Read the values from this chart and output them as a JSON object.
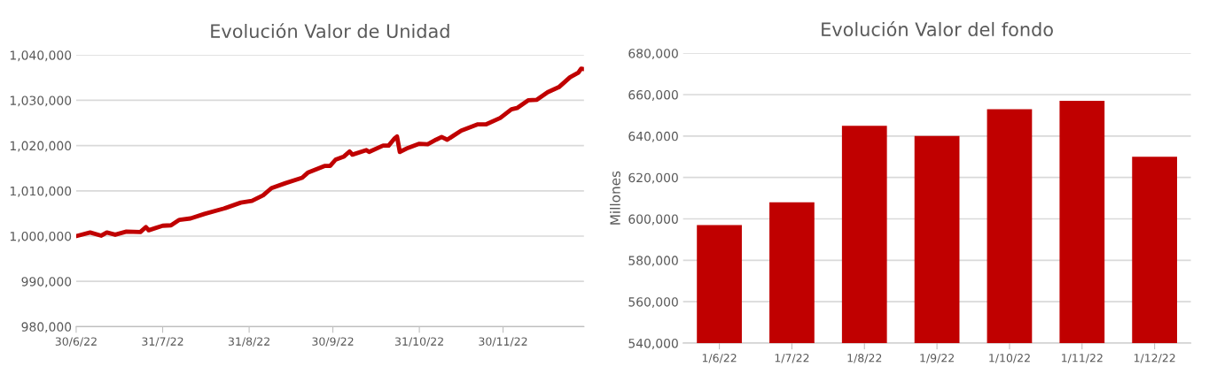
{
  "chart_data": [
    {
      "type": "line",
      "title": "Evolución Valor de Unidad",
      "color": "#c00000",
      "grid": "y",
      "legend": false,
      "x": [
        "2022-06-30",
        "2022-07-05",
        "2022-07-09",
        "2022-07-11",
        "2022-07-14",
        "2022-07-18",
        "2022-07-23",
        "2022-07-25",
        "2022-07-26",
        "2022-07-31",
        "2022-08-03",
        "2022-08-06",
        "2022-08-10",
        "2022-08-15",
        "2022-08-22",
        "2022-08-28",
        "2022-09-01",
        "2022-09-05",
        "2022-09-08",
        "2022-09-13",
        "2022-09-19",
        "2022-09-21",
        "2022-09-27",
        "2022-09-29",
        "2022-10-01",
        "2022-10-04",
        "2022-10-06",
        "2022-10-07",
        "2022-10-12",
        "2022-10-13",
        "2022-10-18",
        "2022-10-20",
        "2022-10-22",
        "2022-10-23",
        "2022-10-24",
        "2022-10-27",
        "2022-10-31",
        "2022-11-03",
        "2022-11-06",
        "2022-11-08",
        "2022-11-10",
        "2022-11-15",
        "2022-11-21",
        "2022-11-24",
        "2022-11-29",
        "2022-12-03",
        "2022-12-05",
        "2022-12-09",
        "2022-12-12",
        "2022-12-16",
        "2022-12-20",
        "2022-12-24",
        "2022-12-27",
        "2022-12-28",
        "2022-12-29"
      ],
      "values": [
        1000000,
        1000800,
        1000100,
        1000800,
        1000300,
        1001000,
        1000900,
        1002000,
        1001300,
        1002300,
        1002400,
        1003600,
        1003900,
        1004900,
        1006100,
        1007400,
        1007800,
        1009000,
        1010600,
        1011700,
        1012900,
        1014000,
        1015500,
        1015500,
        1016900,
        1017600,
        1018700,
        1018000,
        1019000,
        1018600,
        1020000,
        1020000,
        1021500,
        1022000,
        1018600,
        1019500,
        1020400,
        1020300,
        1021300,
        1021900,
        1021300,
        1023300,
        1024700,
        1024700,
        1026100,
        1028000,
        1028300,
        1030000,
        1030100,
        1031800,
        1032900,
        1035100,
        1036100,
        1037000,
        1036900
      ],
      "xlim": [
        "2022-06-30",
        "2022-12-29"
      ],
      "xticks": [
        {
          "value": "2022-06-30",
          "label": "30/6/22"
        },
        {
          "value": "2022-07-31",
          "label": "31/7/22"
        },
        {
          "value": "2022-08-31",
          "label": "31/8/22"
        },
        {
          "value": "2022-09-30",
          "label": "30/9/22"
        },
        {
          "value": "2022-10-31",
          "label": "31/10/22"
        },
        {
          "value": "2022-11-30",
          "label": "30/11/22"
        }
      ],
      "ylim": [
        980000,
        1040000
      ],
      "yticks": [
        {
          "value": 980000,
          "label": "980,000"
        },
        {
          "value": 990000,
          "label": "990,000"
        },
        {
          "value": 1000000,
          "label": "1,000,000"
        },
        {
          "value": 1010000,
          "label": "1,010,000"
        },
        {
          "value": 1020000,
          "label": "1,020,000"
        },
        {
          "value": 1030000,
          "label": "1,030,000"
        },
        {
          "value": 1040000,
          "label": "1,040,000"
        }
      ]
    },
    {
      "type": "bar",
      "title": "Evolución Valor del fondo",
      "ylabel": "Millones",
      "color": "#c00000",
      "grid": "y",
      "legend": false,
      "categories": [
        "1/6/22",
        "1/7/22",
        "1/8/22",
        "1/9/22",
        "1/10/22",
        "1/11/22",
        "1/12/22"
      ],
      "values": [
        597000,
        608000,
        645000,
        640000,
        653000,
        657000,
        630000
      ],
      "ylim": [
        540000,
        680000
      ],
      "yticks": [
        {
          "value": 540000,
          "label": "540,000"
        },
        {
          "value": 560000,
          "label": "560,000"
        },
        {
          "value": 580000,
          "label": "580,000"
        },
        {
          "value": 600000,
          "label": "600,000"
        },
        {
          "value": 620000,
          "label": "620,000"
        },
        {
          "value": 640000,
          "label": "640,000"
        },
        {
          "value": 660000,
          "label": "660,000"
        },
        {
          "value": 680000,
          "label": "680,000"
        }
      ]
    }
  ]
}
